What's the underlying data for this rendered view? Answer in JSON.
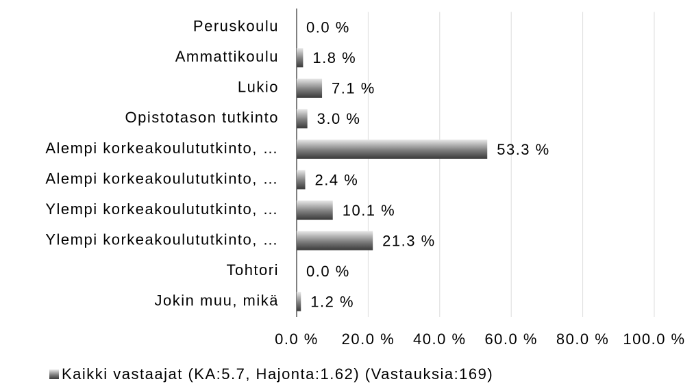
{
  "chart_data": {
    "type": "bar",
    "orientation": "horizontal",
    "categories": [
      "Peruskoulu",
      "Ammattikoulu",
      "Lukio",
      "Opistotason tutkinto",
      "Alempi korkeakoulututkinto, …",
      "Alempi korkeakoulututkinto, …",
      "Ylempi korkeakoulututkinto, …",
      "Ylempi korkeakoulututkinto, …",
      "Tohtori",
      "Jokin muu, mikä"
    ],
    "series": [
      {
        "name": "Kaikki vastaajat (KA:5.7, Hajonta:1.62) (Vastauksia:169)",
        "color": "#7f7f7f",
        "values": [
          0.0,
          1.8,
          7.1,
          3.0,
          53.3,
          2.4,
          10.1,
          21.3,
          0.0,
          1.2
        ],
        "value_labels": [
          "0.0 %",
          "1.8 %",
          "7.1 %",
          "3.0 %",
          "53.3 %",
          "2.4 %",
          "10.1 %",
          "21.3 %",
          "0.0 %",
          "1.2 %"
        ]
      }
    ],
    "xlim": [
      0,
      100
    ],
    "xticks": [
      {
        "value": 0,
        "label": "0.0 %"
      },
      {
        "value": 20,
        "label": "20.0 %"
      },
      {
        "value": 40,
        "label": "40.0 %"
      },
      {
        "value": 60,
        "label": "60.0 %"
      },
      {
        "value": 80,
        "label": "80.0 %"
      },
      {
        "value": 100,
        "label": "100.0 %"
      }
    ],
    "grid": true,
    "legend": "bottom"
  }
}
